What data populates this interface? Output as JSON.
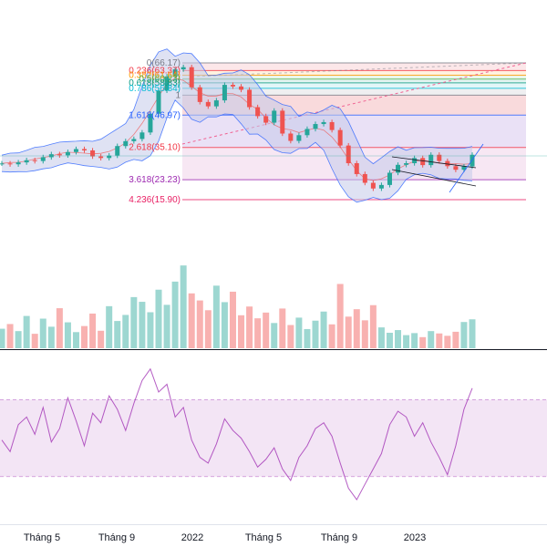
{
  "colors": {
    "up": "#26a69a",
    "down": "#ef5350",
    "bollinger_line": "#2962ff",
    "bollinger_fill": "#c5cae9",
    "rsi_line": "#9c27b0",
    "rsi_band": "#f3e5f5",
    "divider": "#131722"
  },
  "chart_data": [
    {
      "type": "candlestick",
      "panel": "price",
      "indicators": [
        "Bollinger Bands",
        "Fibonacci extension",
        "trend lines"
      ],
      "fib_levels": [
        {
          "ratio": "0",
          "price": 66.17,
          "label": "0(66.17)",
          "color": "#787b86",
          "fill": ""
        },
        {
          "ratio": "0.236",
          "price": 63.37,
          "label": "0.236(63.37)",
          "color": "#f23645",
          "fill": "#fbe3e5"
        },
        {
          "ratio": "0.382",
          "price": 61.64,
          "label": "0.382(61.64)",
          "color": "#ff9800",
          "fill": "#fff0db"
        },
        {
          "ratio": "0.5",
          "price": 60.23,
          "label": "0.5(60.23)",
          "color": "#4caf50",
          "fill": "#e6f4e7"
        },
        {
          "ratio": "0.618",
          "price": 58.83,
          "label": "0.618(58.83)",
          "color": "#089981",
          "fill": "#ddf1ee"
        },
        {
          "ratio": "0.786",
          "price": 56.84,
          "label": "0.786(56.84)",
          "color": "#00bcd4",
          "fill": "#ddf4f7"
        },
        {
          "ratio": "1",
          "price": 54.3,
          "label": "1",
          "color": "#787b86",
          "fill": "#ececee"
        },
        {
          "ratio": "1.618",
          "price": 46.97,
          "label": "1.618(46.97)",
          "color": "#2962ff",
          "fill": "#f8d4d6"
        },
        {
          "ratio": "2.618",
          "price": 35.1,
          "label": "2.618(35.10)",
          "color": "#f23645",
          "fill": "#e6dcf5"
        },
        {
          "ratio": "3.618",
          "price": 23.23,
          "label": "3.618(23.23)",
          "color": "#9c27b0",
          "fill": "#f6e3f1"
        },
        {
          "ratio": "4.236",
          "price": 15.9,
          "label": "4.236(15.90)",
          "color": "#e91e63",
          "fill": ""
        }
      ],
      "close_series": [
        29.2,
        28.9,
        29.6,
        30.4,
        30.1,
        31.5,
        32.6,
        32.2,
        33.4,
        34.5,
        34.0,
        31.8,
        31.2,
        32.1,
        35.6,
        37.4,
        38.2,
        40.6,
        47.5,
        56.0,
        61.2,
        63.8,
        64.6,
        57.2,
        51.8,
        50.2,
        52.4,
        58.1,
        57.5,
        56.3,
        49.9,
        46.6,
        44.2,
        48.6,
        40.2,
        37.5,
        39.6,
        41.9,
        43.7,
        44.4,
        41.5,
        35.8,
        29.3,
        25.3,
        22.1,
        20.0,
        21.3,
        25.8,
        28.7,
        29.3,
        31.2,
        28.6,
        32.4,
        30.1,
        28.2,
        26.9,
        28.1,
        32.4
      ]
    },
    {
      "type": "bar",
      "panel": "volume",
      "series": [
        {
          "values": [
            5.8,
            7.2,
            5.1,
            9.6,
            4.3,
            8.8,
            6.4,
            11.9,
            7.7,
            4.8,
            6.6,
            10.3,
            5.2,
            12.5,
            8.1,
            9.9,
            15.2,
            13.8,
            10.7,
            17.4,
            12.9,
            19.8,
            24.6,
            16.3,
            14.2,
            11.3,
            18.6,
            13.7,
            16.8,
            9.8,
            12.4,
            8.9,
            10.6,
            7.5,
            11.8,
            6.9,
            9.1,
            5.7,
            8.2,
            10.9,
            7.1,
            19.1,
            9.4,
            11.6,
            8.3,
            12.8,
            6.2,
            4.6,
            5.4,
            3.9,
            4.5,
            3.3,
            5.1,
            4.4,
            3.7,
            4.9,
            7.8,
            8.6
          ]
        }
      ]
    },
    {
      "type": "line",
      "panel": "rsi",
      "series": [
        {
          "values": [
            49,
            43,
            57,
            61,
            52,
            66,
            48,
            55,
            71,
            59,
            46,
            63,
            58,
            72,
            65,
            54,
            68,
            80,
            86,
            74,
            78,
            61,
            66,
            49,
            40,
            37,
            47,
            60,
            54,
            50,
            43,
            35,
            39,
            45,
            34,
            28,
            40,
            46,
            55,
            58,
            51,
            37,
            24,
            18,
            26,
            34,
            42,
            57,
            64,
            61,
            51,
            58,
            48,
            40,
            31,
            46,
            65,
            76
          ]
        }
      ],
      "bands": {
        "upper": 70,
        "lower": 30
      }
    }
  ],
  "x_axis": {
    "tick_labels": [
      "Tháng 5",
      "Tháng 9",
      "2022",
      "Tháng 5",
      "Tháng 9",
      "2023"
    ]
  }
}
